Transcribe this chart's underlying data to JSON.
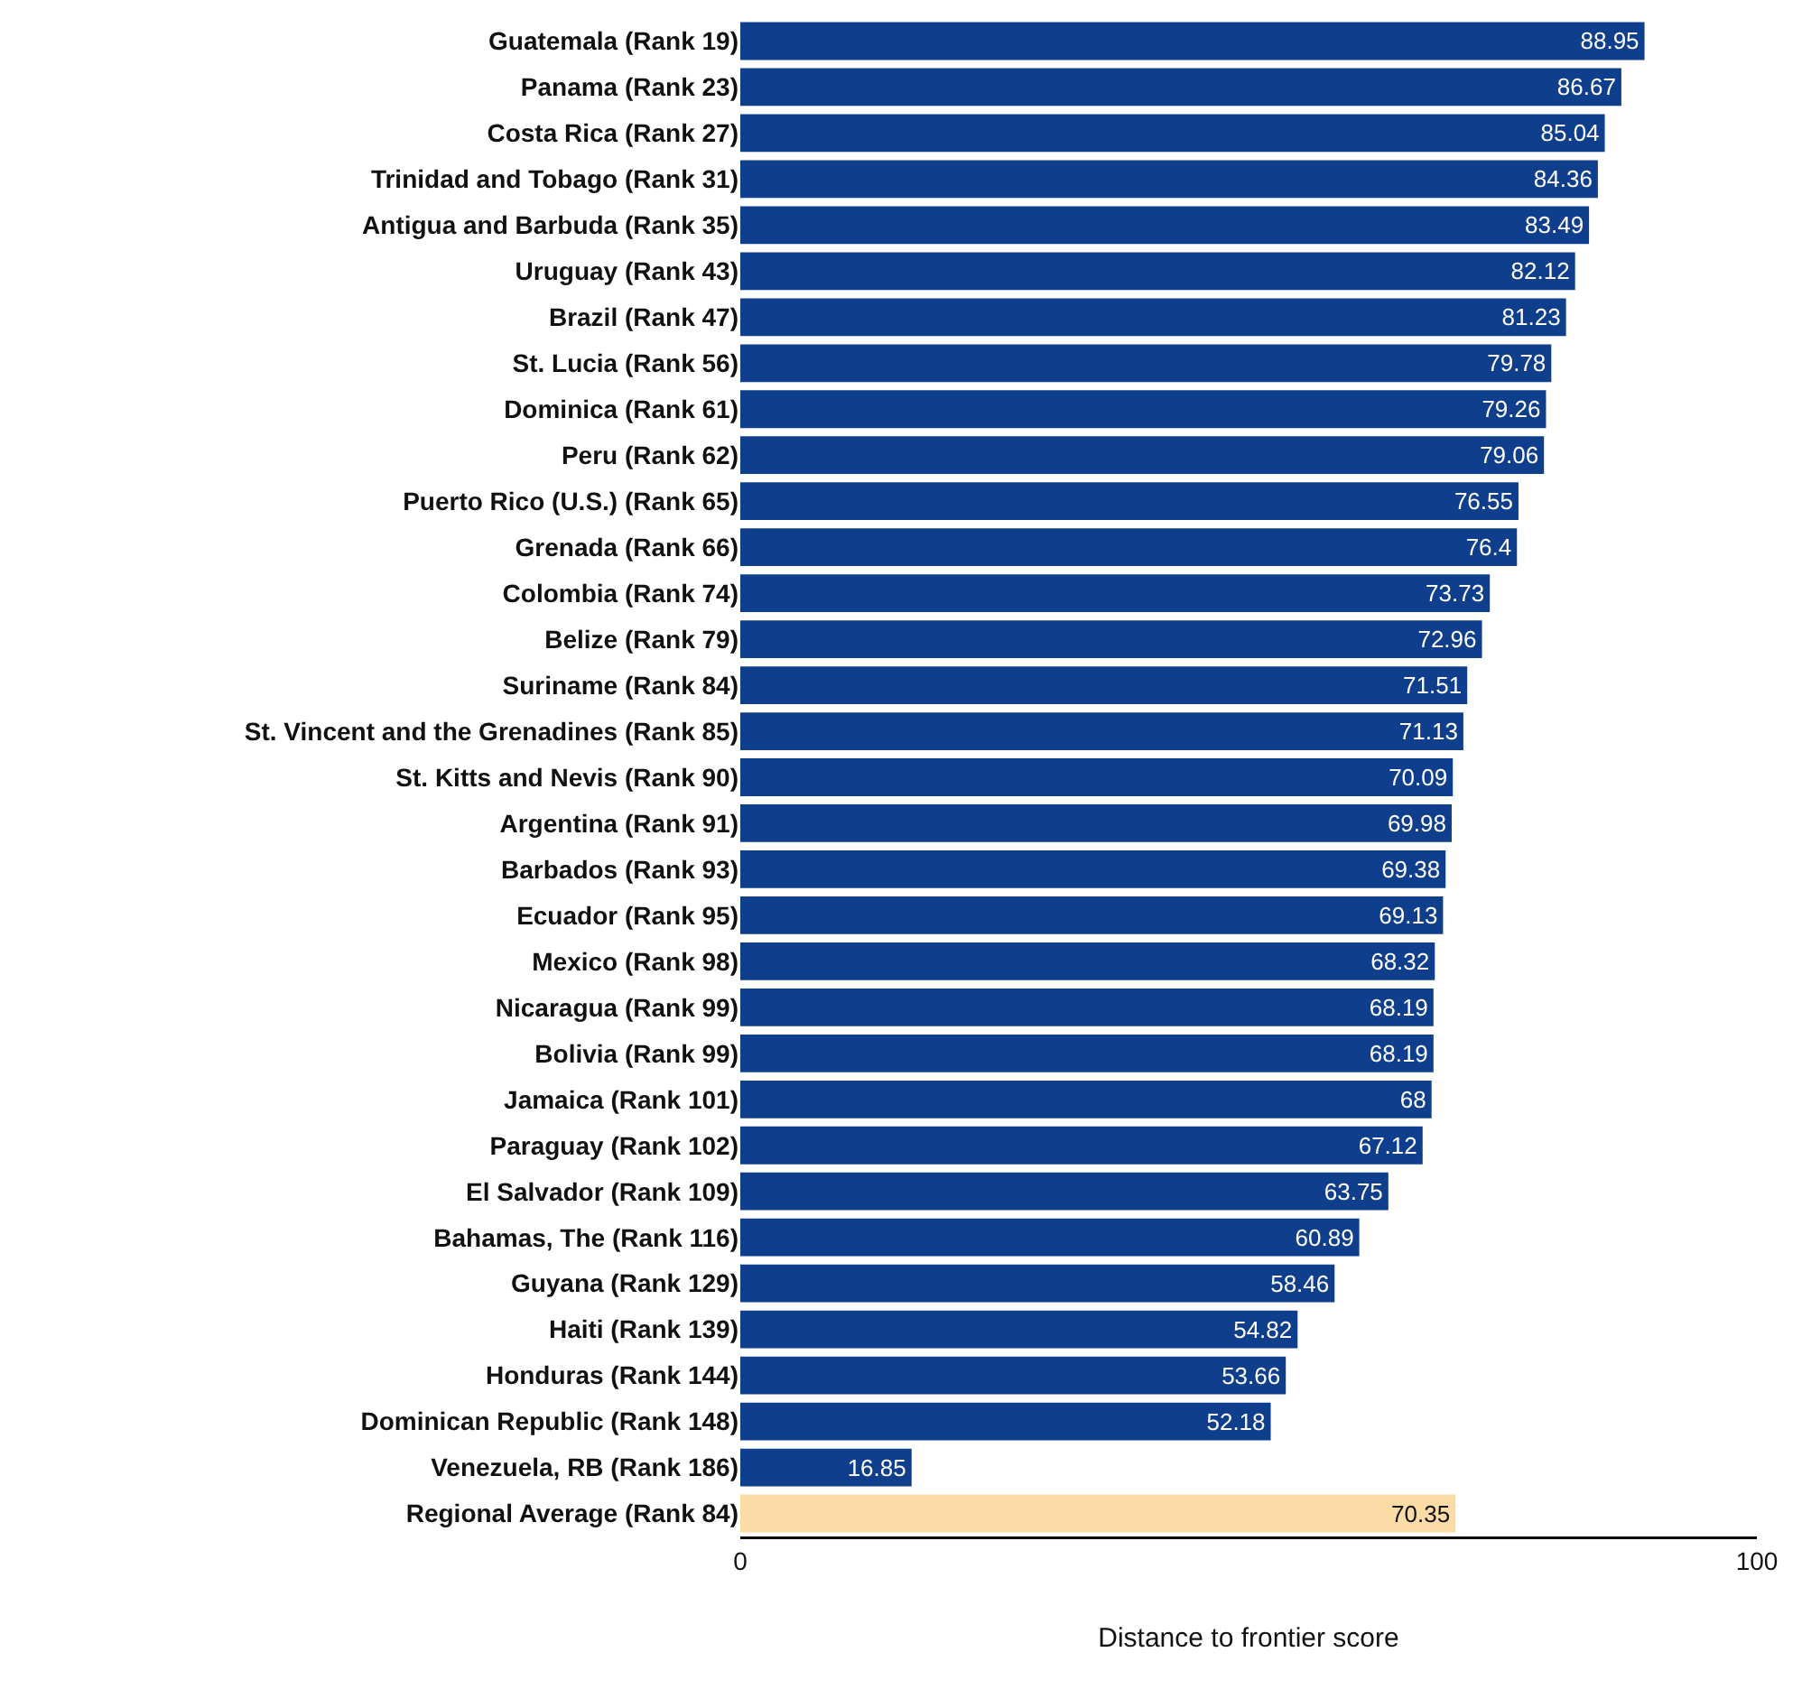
{
  "chart_data": {
    "type": "bar",
    "orientation": "horizontal",
    "xlabel": "Distance to frontier score",
    "categories": [
      "Guatemala (Rank 19)",
      "Panama (Rank 23)",
      "Costa Rica (Rank 27)",
      "Trinidad and Tobago (Rank 31)",
      "Antigua and Barbuda (Rank 35)",
      "Uruguay (Rank 43)",
      "Brazil (Rank 47)",
      "St. Lucia (Rank 56)",
      "Dominica (Rank 61)",
      "Peru (Rank 62)",
      "Puerto Rico (U.S.) (Rank 65)",
      "Grenada (Rank 66)",
      "Colombia (Rank 74)",
      "Belize (Rank 79)",
      "Suriname (Rank 84)",
      "St. Vincent and the Grenadines (Rank 85)",
      "St. Kitts and Nevis (Rank 90)",
      "Argentina (Rank 91)",
      "Barbados (Rank 93)",
      "Ecuador (Rank 95)",
      "Mexico (Rank 98)",
      "Nicaragua (Rank 99)",
      "Bolivia (Rank 99)",
      "Jamaica (Rank 101)",
      "Paraguay (Rank 102)",
      "El Salvador (Rank 109)",
      "Bahamas, The (Rank 116)",
      "Guyana (Rank 129)",
      "Haiti (Rank 139)",
      "Honduras (Rank 144)",
      "Dominican Republic (Rank 148)",
      "Venezuela, RB (Rank 186)",
      "Regional Average (Rank 84)"
    ],
    "values": [
      88.95,
      86.67,
      85.04,
      84.36,
      83.49,
      82.12,
      81.23,
      79.78,
      79.26,
      79.06,
      76.55,
      76.4,
      73.73,
      72.96,
      71.51,
      71.13,
      70.09,
      69.98,
      69.38,
      69.13,
      68.32,
      68.19,
      68.19,
      68,
      67.12,
      63.75,
      60.89,
      58.46,
      54.82,
      53.66,
      52.18,
      16.85,
      70.35
    ],
    "colors": [
      "#0f3f8c",
      "#0f3f8c",
      "#0f3f8c",
      "#0f3f8c",
      "#0f3f8c",
      "#0f3f8c",
      "#0f3f8c",
      "#0f3f8c",
      "#0f3f8c",
      "#0f3f8c",
      "#0f3f8c",
      "#0f3f8c",
      "#0f3f8c",
      "#0f3f8c",
      "#0f3f8c",
      "#0f3f8c",
      "#0f3f8c",
      "#0f3f8c",
      "#0f3f8c",
      "#0f3f8c",
      "#0f3f8c",
      "#0f3f8c",
      "#0f3f8c",
      "#0f3f8c",
      "#0f3f8c",
      "#0f3f8c",
      "#0f3f8c",
      "#0f3f8c",
      "#0f3f8c",
      "#0f3f8c",
      "#0f3f8c",
      "#0f3f8c",
      "#fbdca6"
    ],
    "data_labels": true,
    "xlim": [
      0,
      100
    ],
    "xticks": [
      0,
      100
    ]
  }
}
